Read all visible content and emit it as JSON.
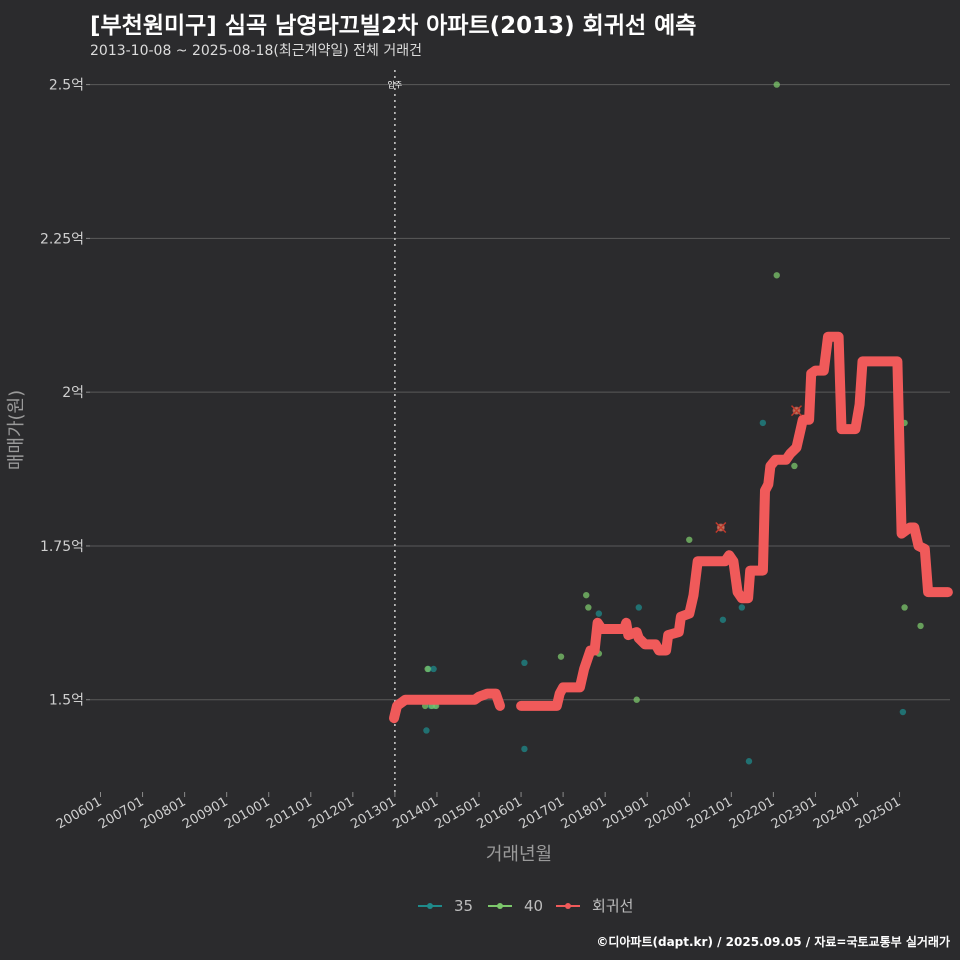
{
  "title": "[부천원미구] 심곡 남영라끄빌2차 아파트(2013) 회귀선 예측",
  "subtitle": "2013-10-08 ~ 2025-08-18(최근계약일) 전체 거래건",
  "caption": "©디아파트(dapt.kr) / 2025.09.05 / 자료=국토교통부 실거래가",
  "colors": {
    "background": "#2b2b2d",
    "grid": "#5a5a5a",
    "series_35": "#1f8a8a",
    "series_40": "#7cc76b",
    "regression": "#f05a5a"
  },
  "chart_data": {
    "type": "line",
    "xlabel": "거래년월",
    "ylabel": "매매가(원)",
    "x_ticks": [
      "200601",
      "200701",
      "200801",
      "200901",
      "201001",
      "201101",
      "201201",
      "201301",
      "201401",
      "201501",
      "201601",
      "201701",
      "201801",
      "201901",
      "202001",
      "202101",
      "202201",
      "202301",
      "202401",
      "202501"
    ],
    "y_ticks": [
      {
        "value": 1.5,
        "label": "1.5억"
      },
      {
        "value": 1.75,
        "label": "1.75억"
      },
      {
        "value": 2.0,
        "label": "2억"
      },
      {
        "value": 2.25,
        "label": "2.25억"
      },
      {
        "value": 2.5,
        "label": "2.5억"
      }
    ],
    "ylim": [
      1.35,
      2.54
    ],
    "xlim": [
      2005.75,
      2026.2
    ],
    "vline": {
      "x": 2013.0,
      "label": "입주"
    },
    "legend": [
      {
        "name": "35",
        "color": "#1f8a8a"
      },
      {
        "name": "40",
        "color": "#7cc76b"
      },
      {
        "name": "회귀선",
        "color": "#f05a5a"
      }
    ],
    "series": [
      {
        "name": "35",
        "points": [
          [
            2013.75,
            1.45
          ],
          [
            2013.8,
            1.55
          ],
          [
            2013.85,
            1.49
          ],
          [
            2013.92,
            1.55
          ],
          [
            2013.95,
            1.49
          ],
          [
            2016.08,
            1.56
          ],
          [
            2016.08,
            1.42
          ],
          [
            2017.85,
            1.64
          ],
          [
            2018.8,
            1.65
          ],
          [
            2020.8,
            1.63
          ],
          [
            2021.25,
            1.65
          ],
          [
            2021.42,
            1.4
          ],
          [
            2021.75,
            1.95
          ],
          [
            2025.08,
            1.48
          ]
        ]
      },
      {
        "name": "40",
        "points": [
          [
            2013.72,
            1.49
          ],
          [
            2013.78,
            1.55
          ],
          [
            2013.88,
            1.49
          ],
          [
            2013.98,
            1.49
          ],
          [
            2016.95,
            1.57
          ],
          [
            2017.55,
            1.67
          ],
          [
            2017.6,
            1.65
          ],
          [
            2017.85,
            1.575
          ],
          [
            2018.75,
            1.5
          ],
          [
            2020.0,
            1.76
          ],
          [
            2020.75,
            1.78
          ],
          [
            2021.75,
            1.78
          ],
          [
            2022.08,
            2.5
          ],
          [
            2022.08,
            2.19
          ],
          [
            2022.5,
            1.88
          ],
          [
            2022.55,
            1.97
          ],
          [
            2025.12,
            1.95
          ],
          [
            2025.12,
            1.65
          ],
          [
            2025.5,
            1.62
          ]
        ]
      },
      {
        "name": "회귀선",
        "segments": [
          [
            [
              2012.98,
              1.47
            ],
            [
              2013.05,
              1.49
            ],
            [
              2013.25,
              1.5
            ],
            [
              2013.6,
              1.5
            ],
            [
              2014.0,
              1.5
            ],
            [
              2014.5,
              1.5
            ],
            [
              2014.9,
              1.5
            ],
            [
              2015.0,
              1.505
            ],
            [
              2015.2,
              1.51
            ],
            [
              2015.4,
              1.51
            ],
            [
              2015.5,
              1.49
            ]
          ],
          [
            [
              2016.0,
              1.49
            ],
            [
              2016.5,
              1.49
            ],
            [
              2016.85,
              1.49
            ],
            [
              2016.92,
              1.51
            ],
            [
              2017.0,
              1.52
            ],
            [
              2017.4,
              1.52
            ],
            [
              2017.5,
              1.55
            ],
            [
              2017.65,
              1.58
            ],
            [
              2017.75,
              1.58
            ],
            [
              2017.82,
              1.625
            ],
            [
              2017.92,
              1.615
            ],
            [
              2018.2,
              1.615
            ],
            [
              2018.45,
              1.615
            ],
            [
              2018.5,
              1.625
            ],
            [
              2018.55,
              1.605
            ],
            [
              2018.75,
              1.61
            ],
            [
              2018.8,
              1.6
            ],
            [
              2018.95,
              1.59
            ],
            [
              2019.2,
              1.59
            ],
            [
              2019.28,
              1.58
            ],
            [
              2019.45,
              1.58
            ],
            [
              2019.5,
              1.605
            ],
            [
              2019.75,
              1.61
            ],
            [
              2019.8,
              1.635
            ],
            [
              2020.0,
              1.64
            ],
            [
              2020.1,
              1.67
            ],
            [
              2020.2,
              1.725
            ],
            [
              2020.5,
              1.725
            ],
            [
              2020.85,
              1.725
            ],
            [
              2020.95,
              1.735
            ],
            [
              2021.05,
              1.725
            ],
            [
              2021.15,
              1.675
            ],
            [
              2021.25,
              1.665
            ],
            [
              2021.4,
              1.665
            ],
            [
              2021.45,
              1.71
            ],
            [
              2021.6,
              1.71
            ],
            [
              2021.75,
              1.71
            ],
            [
              2021.8,
              1.84
            ],
            [
              2021.88,
              1.85
            ],
            [
              2021.93,
              1.88
            ],
            [
              2022.05,
              1.89
            ],
            [
              2022.3,
              1.89
            ],
            [
              2022.4,
              1.9
            ],
            [
              2022.55,
              1.91
            ],
            [
              2022.65,
              1.94
            ],
            [
              2022.7,
              1.955
            ],
            [
              2022.85,
              1.955
            ],
            [
              2022.9,
              2.03
            ],
            [
              2023.0,
              2.035
            ],
            [
              2023.2,
              2.035
            ],
            [
              2023.3,
              2.09
            ],
            [
              2023.55,
              2.09
            ],
            [
              2023.62,
              1.94
            ],
            [
              2023.95,
              1.94
            ],
            [
              2024.05,
              1.98
            ],
            [
              2024.12,
              2.05
            ],
            [
              2024.3,
              2.05
            ],
            [
              2024.6,
              2.05
            ],
            [
              2024.95,
              2.05
            ],
            [
              2025.05,
              1.77
            ],
            [
              2025.25,
              1.78
            ],
            [
              2025.35,
              1.78
            ],
            [
              2025.45,
              1.75
            ],
            [
              2025.6,
              1.745
            ],
            [
              2025.68,
              1.675
            ],
            [
              2026.15,
              1.675
            ]
          ]
        ],
        "markers": [
          [
            2020.75,
            1.78
          ],
          [
            2022.55,
            1.97
          ]
        ]
      }
    ]
  }
}
